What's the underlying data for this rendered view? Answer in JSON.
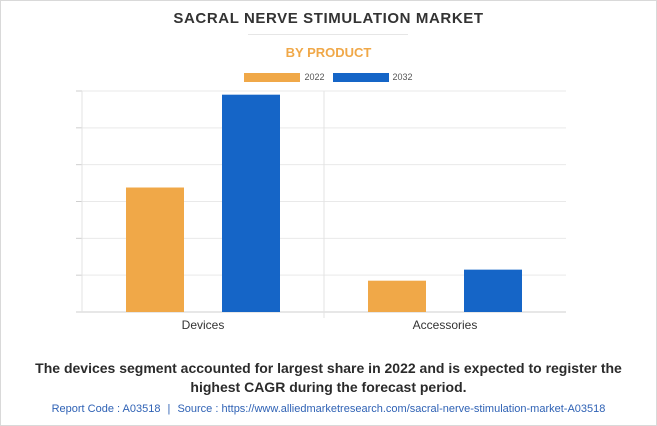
{
  "header": {
    "title": "SACRAL NERVE STIMULATION MARKET",
    "subtitle": "BY PRODUCT"
  },
  "legend": [
    {
      "label": "2022",
      "color": "#f0a848"
    },
    {
      "label": "2032",
      "color": "#1565c7"
    }
  ],
  "chart_data": {
    "type": "bar",
    "title": "",
    "xlabel": "",
    "ylabel": "",
    "categories": [
      "Devices",
      "Accessories"
    ],
    "series": [
      {
        "name": "2022",
        "color": "#f0a848",
        "values": [
          33.8,
          8.5
        ]
      },
      {
        "name": "2032",
        "color": "#1565c7",
        "values": [
          59.0,
          11.5
        ]
      }
    ],
    "ylim": [
      0,
      60
    ],
    "y_tick_values": [
      0,
      10,
      20,
      30,
      40,
      50,
      60
    ],
    "y_tick_labels_shown": false,
    "grid": true,
    "legend_position": "top-center"
  },
  "caption": "The devices segment accounted for largest share in 2022 and is expected to register the highest CAGR during the forecast period.",
  "footer": {
    "report_code": "Report Code : A03518",
    "separator": "|",
    "source": "Source : https://www.alliedmarketresearch.com/sacral-nerve-stimulation-market-A03518"
  }
}
